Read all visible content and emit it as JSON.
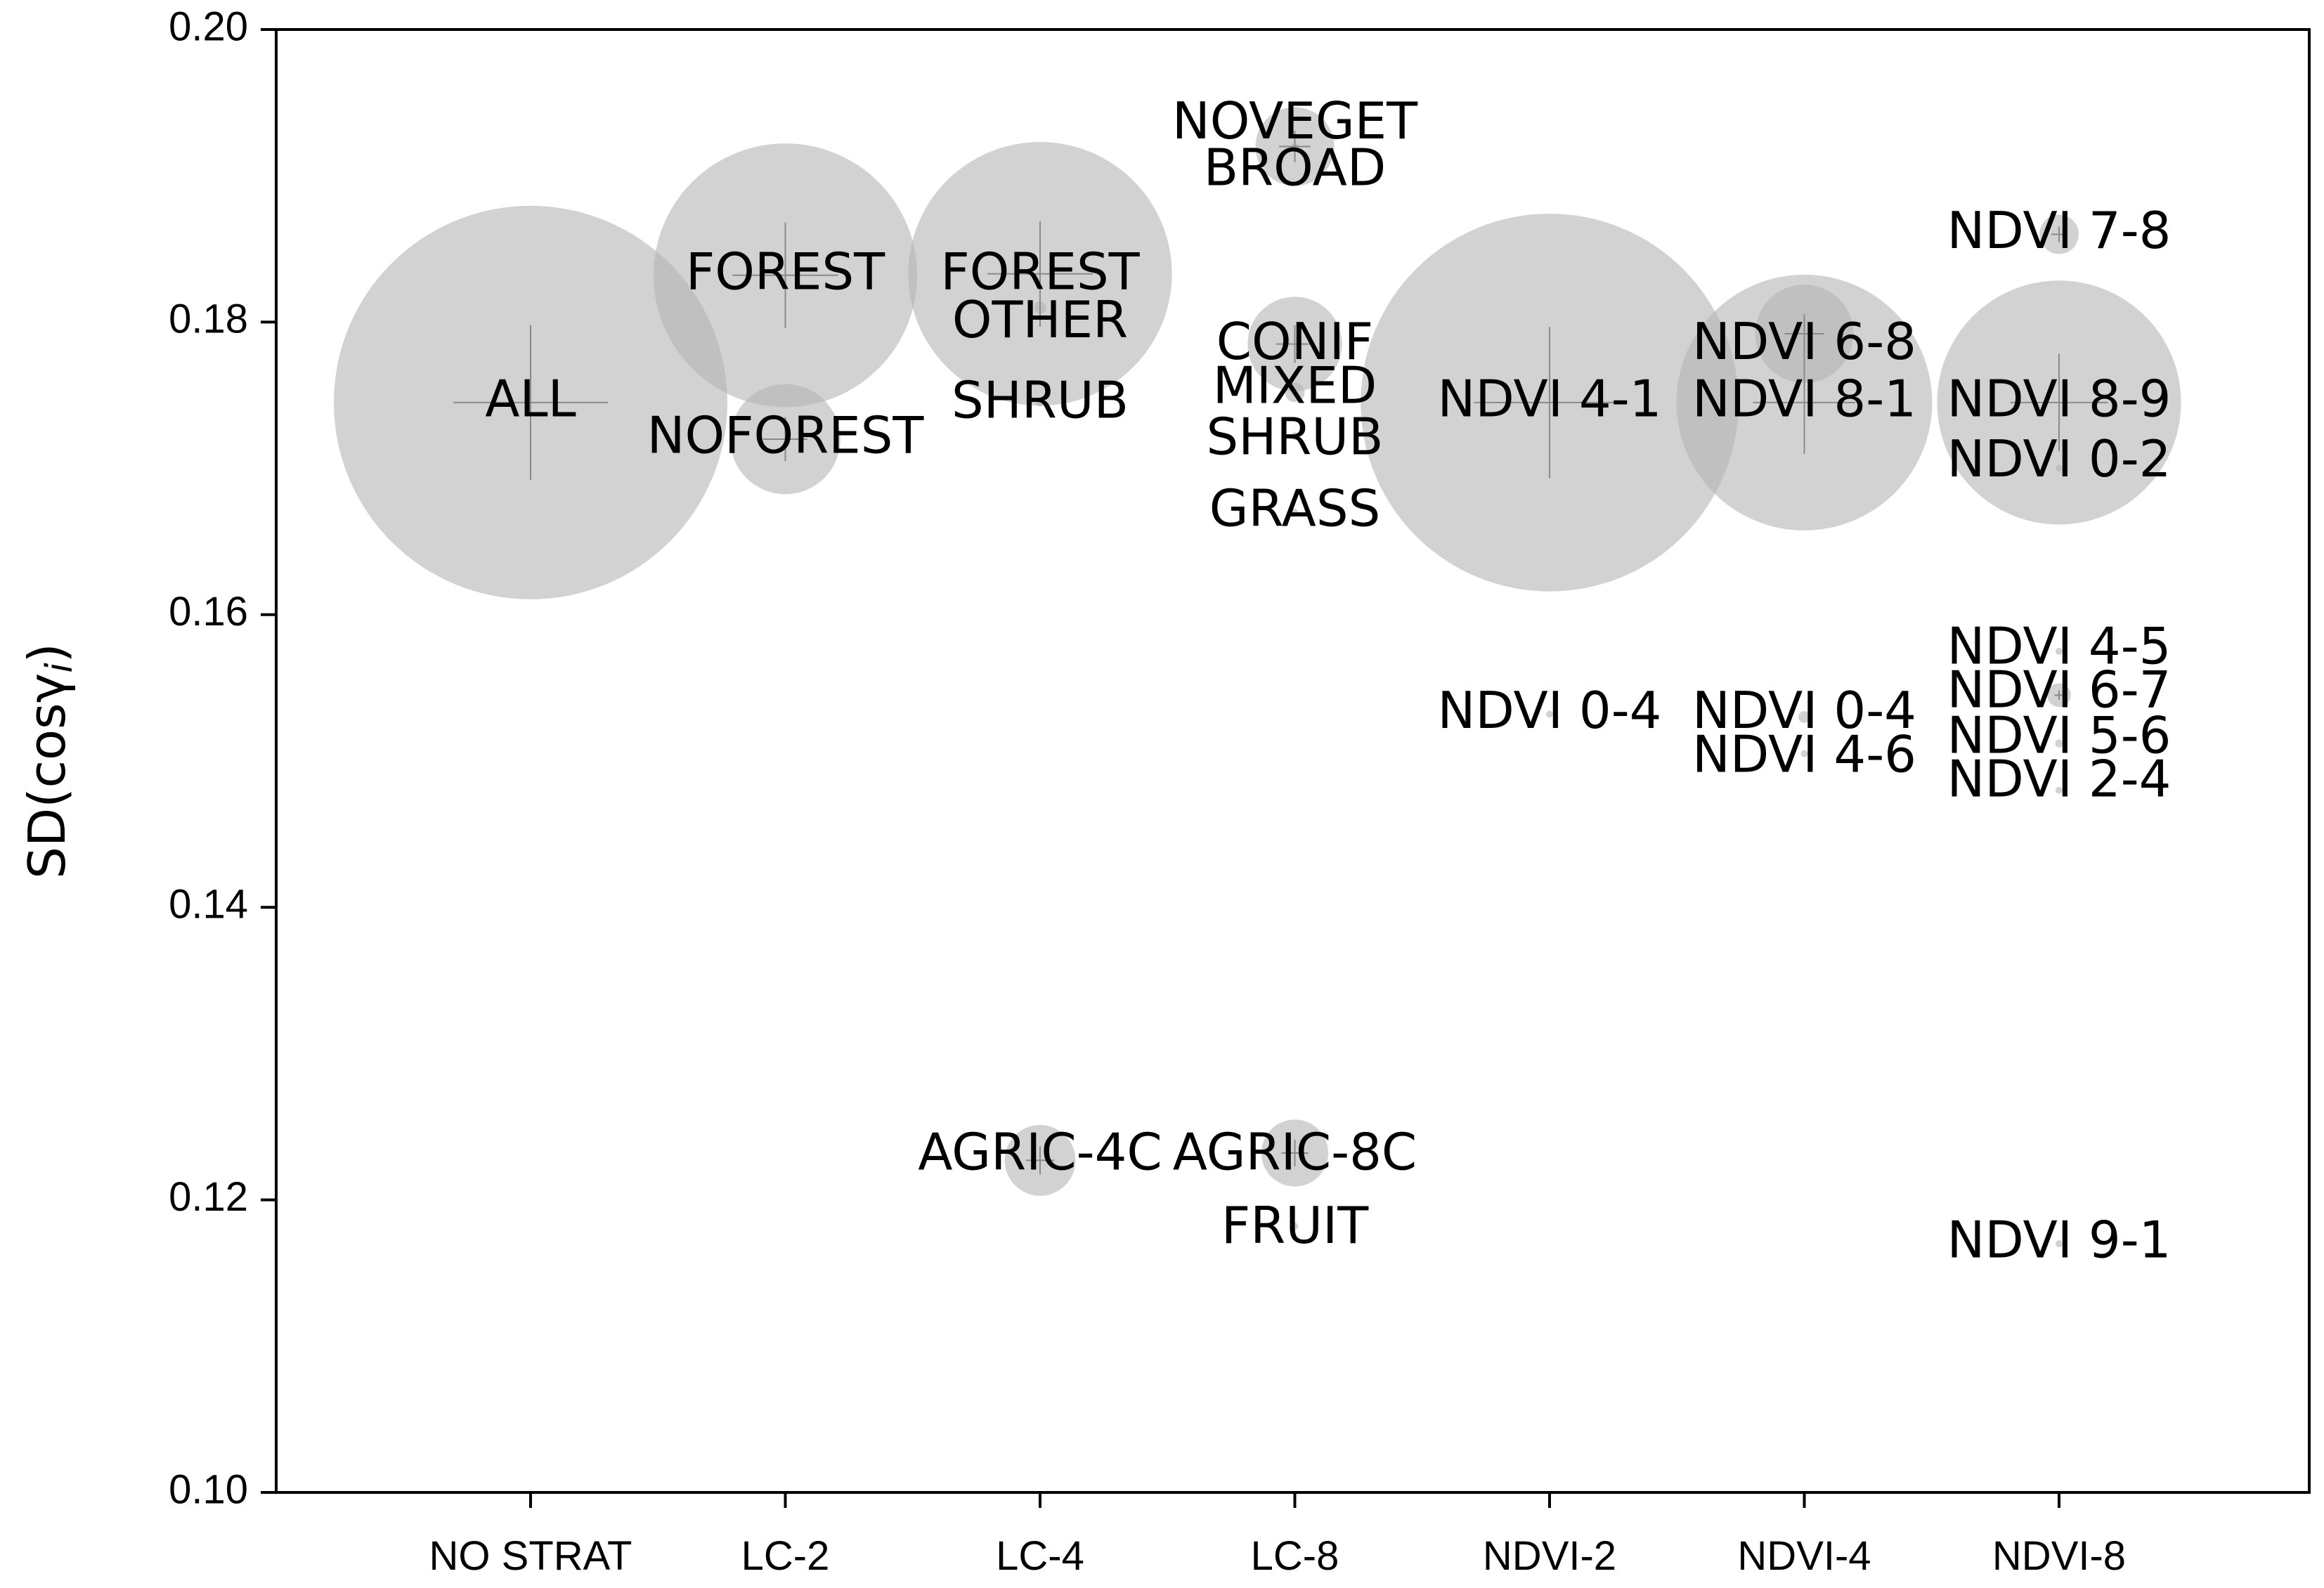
{
  "chart_data": {
    "type": "scatter",
    "subtype": "bubble",
    "title": "",
    "xlabel": "",
    "ylabel_main": "SD(cosγ",
    "ylabel_sub": "i",
    "ylabel_close": ")",
    "ylim": [
      0.1,
      0.2
    ],
    "yticks": [
      "0.10",
      "0.12",
      "0.14",
      "0.16",
      "0.18",
      "0.20"
    ],
    "ytick_values": [
      0.1,
      0.12,
      0.14,
      0.16,
      0.18,
      0.2
    ],
    "categories": [
      "NO STRAT",
      "LC-2",
      "LC-4",
      "LC-8",
      "NDVI-2",
      "NDVI-4",
      "NDVI-8"
    ],
    "grid": false,
    "bubble_color": "#b4b4b4",
    "points": [
      {
        "category": "NO STRAT",
        "y": 0.1745,
        "r": 1.0,
        "label": "ALL",
        "label_y": 0.1745
      },
      {
        "category": "LC-2",
        "y": 0.1832,
        "r": 0.67,
        "label": "FOREST",
        "label_y": 0.1832
      },
      {
        "category": "LC-2",
        "y": 0.172,
        "r": 0.28,
        "label": "NOFOREST",
        "label_y": 0.172
      },
      {
        "category": "LC-4",
        "y": 0.1833,
        "r": 0.67,
        "label": "FOREST",
        "label_y": 0.1832
      },
      {
        "category": "LC-4",
        "y": 0.181,
        "r": 0.03,
        "label": "OTHER",
        "label_y": 0.1799
      },
      {
        "category": "LC-4",
        "y": 0.1745,
        "r": 0.02,
        "label": "SHRUB",
        "label_y": 0.1744
      },
      {
        "category": "LC-4",
        "y": 0.1227,
        "r": 0.18,
        "label": "AGRIC-4C",
        "label_y": 0.123
      },
      {
        "category": "LC-8",
        "y": 0.192,
        "r": 0.2,
        "label": "NOVEGET",
        "label_y": 0.1935
      },
      {
        "category": "LC-8",
        "y": 0.192,
        "r": 0.01,
        "label": "BROAD",
        "label_y": 0.1903
      },
      {
        "category": "LC-8",
        "y": 0.1785,
        "r": 0.24,
        "label": "CONIF",
        "label_y": 0.1784
      },
      {
        "category": "LC-8",
        "y": 0.1752,
        "r": 0.05,
        "label": "MIXED",
        "label_y": 0.1754
      },
      {
        "category": "LC-8",
        "y": 0.1722,
        "r": 0.02,
        "label": "SHRUB",
        "label_y": 0.1719
      },
      {
        "category": "LC-8",
        "y": 0.167,
        "r": 0.01,
        "label": "GRASS",
        "label_y": 0.167
      },
      {
        "category": "LC-8",
        "y": 0.1232,
        "r": 0.17,
        "label": "AGRIC-8C",
        "label_y": 0.123
      },
      {
        "category": "LC-8",
        "y": 0.1182,
        "r": 0.01,
        "label": "FRUIT",
        "label_y": 0.118
      },
      {
        "category": "NDVI-2",
        "y": 0.1745,
        "r": 0.96,
        "label": "NDVI 4-1",
        "label_y": 0.1745
      },
      {
        "category": "NDVI-2",
        "y": 0.1532,
        "r": 0.01,
        "label": "NDVI 0-4",
        "label_y": 0.1532
      },
      {
        "category": "NDVI-4",
        "y": 0.1792,
        "r": 0.25,
        "label": "NDVI 6-8",
        "label_y": 0.1784
      },
      {
        "category": "NDVI-4",
        "y": 0.1745,
        "r": 0.65,
        "label": "NDVI 8-1",
        "label_y": 0.1745
      },
      {
        "category": "NDVI-4",
        "y": 0.153,
        "r": 0.03,
        "label": "NDVI 0-4",
        "label_y": 0.1532
      },
      {
        "category": "NDVI-4",
        "y": 0.1505,
        "r": 0.01,
        "label": "NDVI 4-6",
        "label_y": 0.1502
      },
      {
        "category": "NDVI-8",
        "y": 0.186,
        "r": 0.1,
        "label": "NDVI 7-8",
        "label_y": 0.186
      },
      {
        "category": "NDVI-8",
        "y": 0.1745,
        "r": 0.62,
        "label": "NDVI 8-9",
        "label_y": 0.1745
      },
      {
        "category": "NDVI-8",
        "y": 0.17,
        "r": 0.01,
        "label": "NDVI 0-2",
        "label_y": 0.1704
      },
      {
        "category": "NDVI-8",
        "y": 0.1575,
        "r": 0.01,
        "label": "NDVI 4-5",
        "label_y": 0.1576
      },
      {
        "category": "NDVI-8",
        "y": 0.1545,
        "r": 0.06,
        "label": "NDVI 6-7",
        "label_y": 0.1546
      },
      {
        "category": "NDVI-8",
        "y": 0.1512,
        "r": 0.02,
        "label": "NDVI 5-6",
        "label_y": 0.1515
      },
      {
        "category": "NDVI-8",
        "y": 0.148,
        "r": 0.01,
        "label": "NDVI 2-4",
        "label_y": 0.1485
      },
      {
        "category": "NDVI-8",
        "y": 0.117,
        "r": 0.01,
        "label": "NDVI 9-1",
        "label_y": 0.117
      }
    ]
  }
}
